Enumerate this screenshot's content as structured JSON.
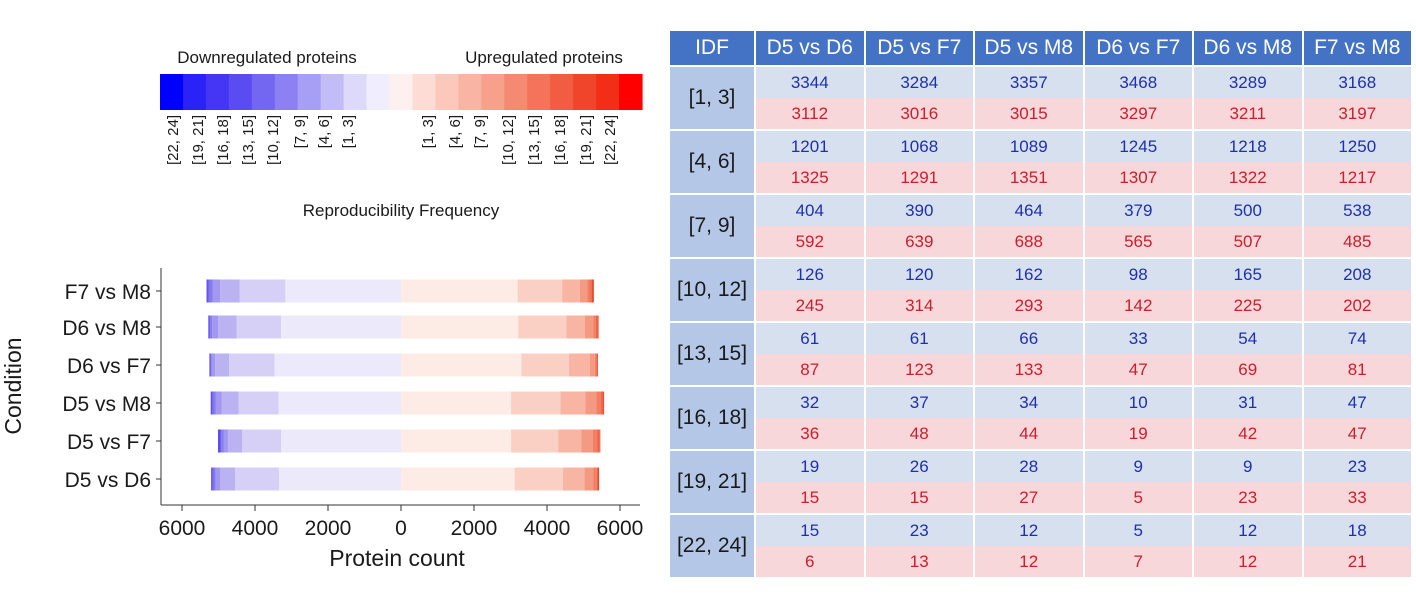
{
  "colorbar": {
    "down_label": "Downregulated proteins",
    "up_label": "Upregulated  proteins",
    "title": "Reproducibility Frequency",
    "down_ticks": [
      "[22, 24]",
      "[19, 21]",
      "[16, 18]",
      "[13, 15]",
      "[10, 12]",
      "[7, 9]",
      "[4, 6]",
      "[1, 3]"
    ],
    "up_ticks": [
      "[1, 3]",
      "[4, 6]",
      "[7, 9]",
      "[10, 12]",
      "[13, 15]",
      "[16, 18]",
      "[19, 21]",
      "[22, 24]"
    ],
    "down_colors": [
      "#0000ff",
      "#2a22f6",
      "#4436f2",
      "#5a4cf0",
      "#7366f0",
      "#8c80f2",
      "#a79ff5",
      "#c2bcf7",
      "#ddd9fa",
      "#f0eefd"
    ],
    "up_colors": [
      "#fdf0ee",
      "#fcdcd4",
      "#fbc8bb",
      "#f9b4a3",
      "#f7a08b",
      "#f58a72",
      "#f4735a",
      "#f25c42",
      "#f1452b",
      "#f32e17",
      "#ff0000"
    ]
  },
  "chart_data": {
    "type": "bar",
    "title": "",
    "xlabel": "Protein count",
    "ylabel": "Condition",
    "xlim": [
      -6500,
      6500
    ],
    "x_ticks": [
      -6000,
      -4000,
      -2000,
      0,
      2000,
      4000,
      6000
    ],
    "x_tick_labels": [
      "6000",
      "4000",
      "2000",
      "0",
      "2000",
      "4000",
      "6000"
    ],
    "bins": [
      "[1, 3]",
      "[4, 6]",
      "[7, 9]",
      "[10, 12]",
      "[13, 15]",
      "[16, 18]",
      "[19, 21]",
      "[22, 24]"
    ],
    "categories": [
      "F7 vs M8",
      "D6 vs M8",
      "D6 vs F7",
      "D5 vs M8",
      "D5 vs F7",
      "D5 vs D6"
    ],
    "down_colors": [
      "#ece9fb",
      "#d6d0f7",
      "#bbb2f2",
      "#a298ef",
      "#877bed",
      "#6f60ec",
      "#5646ea",
      "#3a2be8"
    ],
    "up_colors": [
      "#fdebe5",
      "#fbd0c4",
      "#f8b5a3",
      "#f59a82",
      "#f27f63",
      "#ef6445",
      "#ec4a2a",
      "#e9301a"
    ],
    "downregulated": [
      [
        3168,
        1250,
        538,
        208,
        74,
        47,
        23,
        18
      ],
      [
        3289,
        1218,
        500,
        165,
        54,
        31,
        9,
        12
      ],
      [
        3468,
        1245,
        379,
        98,
        33,
        10,
        9,
        5
      ],
      [
        3357,
        1089,
        464,
        162,
        66,
        34,
        28,
        12
      ],
      [
        3284,
        1068,
        390,
        120,
        61,
        37,
        26,
        23
      ],
      [
        3344,
        1201,
        404,
        126,
        61,
        32,
        19,
        15
      ]
    ],
    "upregulated": [
      [
        3197,
        1217,
        485,
        202,
        81,
        47,
        33,
        21
      ],
      [
        3211,
        1322,
        507,
        225,
        69,
        42,
        23,
        12
      ],
      [
        3297,
        1307,
        565,
        142,
        47,
        19,
        5,
        7
      ],
      [
        3015,
        1351,
        688,
        293,
        133,
        44,
        27,
        12
      ],
      [
        3016,
        1291,
        639,
        314,
        123,
        48,
        15,
        13
      ],
      [
        3112,
        1325,
        592,
        245,
        87,
        36,
        15,
        6
      ]
    ]
  },
  "table": {
    "headers": [
      "IDF",
      "D5 vs D6",
      "D5 vs F7",
      "D5 vs M8",
      "D6 vs F7",
      "D6 vs M8",
      "F7 vs M8"
    ],
    "rows": [
      {
        "range": "[1, 3]",
        "down": [
          "3344",
          "3284",
          "3357",
          "3468",
          "3289",
          "3168"
        ],
        "up": [
          "3112",
          "3016",
          "3015",
          "3297",
          "3211",
          "3197"
        ]
      },
      {
        "range": "[4, 6]",
        "down": [
          "1201",
          "1068",
          "1089",
          "1245",
          "1218",
          "1250"
        ],
        "up": [
          "1325",
          "1291",
          "1351",
          "1307",
          "1322",
          "1217"
        ]
      },
      {
        "range": "[7, 9]",
        "down": [
          "404",
          "390",
          "464",
          "379",
          "500",
          "538"
        ],
        "up": [
          "592",
          "639",
          "688",
          "565",
          "507",
          "485"
        ]
      },
      {
        "range": "[10, 12]",
        "down": [
          "126",
          "120",
          "162",
          "98",
          "165",
          "208"
        ],
        "up": [
          "245",
          "314",
          "293",
          "142",
          "225",
          "202"
        ]
      },
      {
        "range": "[13, 15]",
        "down": [
          "61",
          "61",
          "66",
          "33",
          "54",
          "74"
        ],
        "up": [
          "87",
          "123",
          "133",
          "47",
          "69",
          "81"
        ]
      },
      {
        "range": "[16, 18]",
        "down": [
          "32",
          "37",
          "34",
          "10",
          "31",
          "47"
        ],
        "up": [
          "36",
          "48",
          "44",
          "19",
          "42",
          "47"
        ]
      },
      {
        "range": "[19, 21]",
        "down": [
          "19",
          "26",
          "28",
          "9",
          "9",
          "23"
        ],
        "up": [
          "15",
          "15",
          "27",
          "5",
          "23",
          "33"
        ]
      },
      {
        "range": "[22, 24]",
        "down": [
          "15",
          "23",
          "12",
          "5",
          "12",
          "18"
        ],
        "up": [
          "6",
          "13",
          "12",
          "7",
          "12",
          "21"
        ]
      }
    ]
  }
}
